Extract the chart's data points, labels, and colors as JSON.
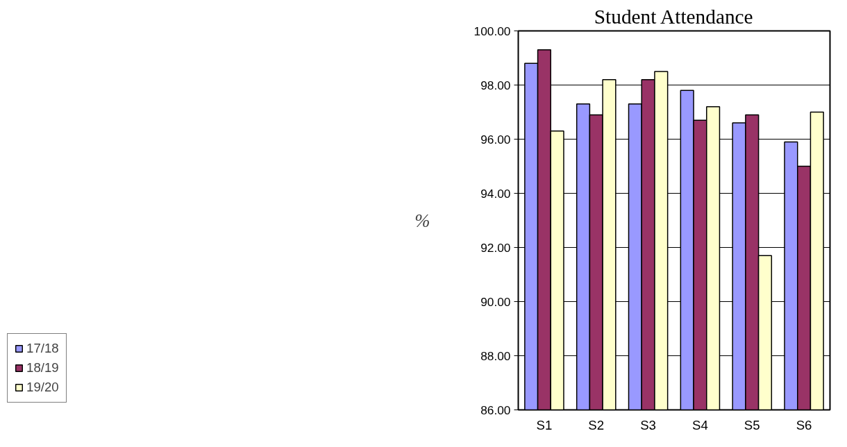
{
  "chart_data": {
    "type": "bar",
    "title": "Student Attendance",
    "ylabel": "%",
    "categories": [
      "S1",
      "S2",
      "S3",
      "S4",
      "S5",
      "S6"
    ],
    "series": [
      {
        "name": "17/18",
        "color": "#9999ff",
        "values": [
          98.8,
          97.3,
          97.3,
          97.8,
          96.6,
          95.9
        ]
      },
      {
        "name": "18/19",
        "color": "#993366",
        "values": [
          99.3,
          96.9,
          98.2,
          96.7,
          96.9,
          95.0
        ]
      },
      {
        "name": "19/20",
        "color": "#ffffcc",
        "values": [
          96.3,
          98.2,
          98.5,
          97.2,
          91.7,
          97.0
        ]
      }
    ],
    "ylim": [
      86,
      100
    ],
    "yticks": [
      {
        "value": 86,
        "label": "86.00"
      },
      {
        "value": 88,
        "label": "88.00"
      },
      {
        "value": 90,
        "label": "90.00"
      },
      {
        "value": 92,
        "label": "92.00"
      },
      {
        "value": 94,
        "label": "94.00"
      },
      {
        "value": 96,
        "label": "96.00"
      },
      {
        "value": 98,
        "label": "98.00"
      },
      {
        "value": 100,
        "label": "100.00"
      }
    ],
    "grid": "y",
    "legend": "bottom left"
  }
}
